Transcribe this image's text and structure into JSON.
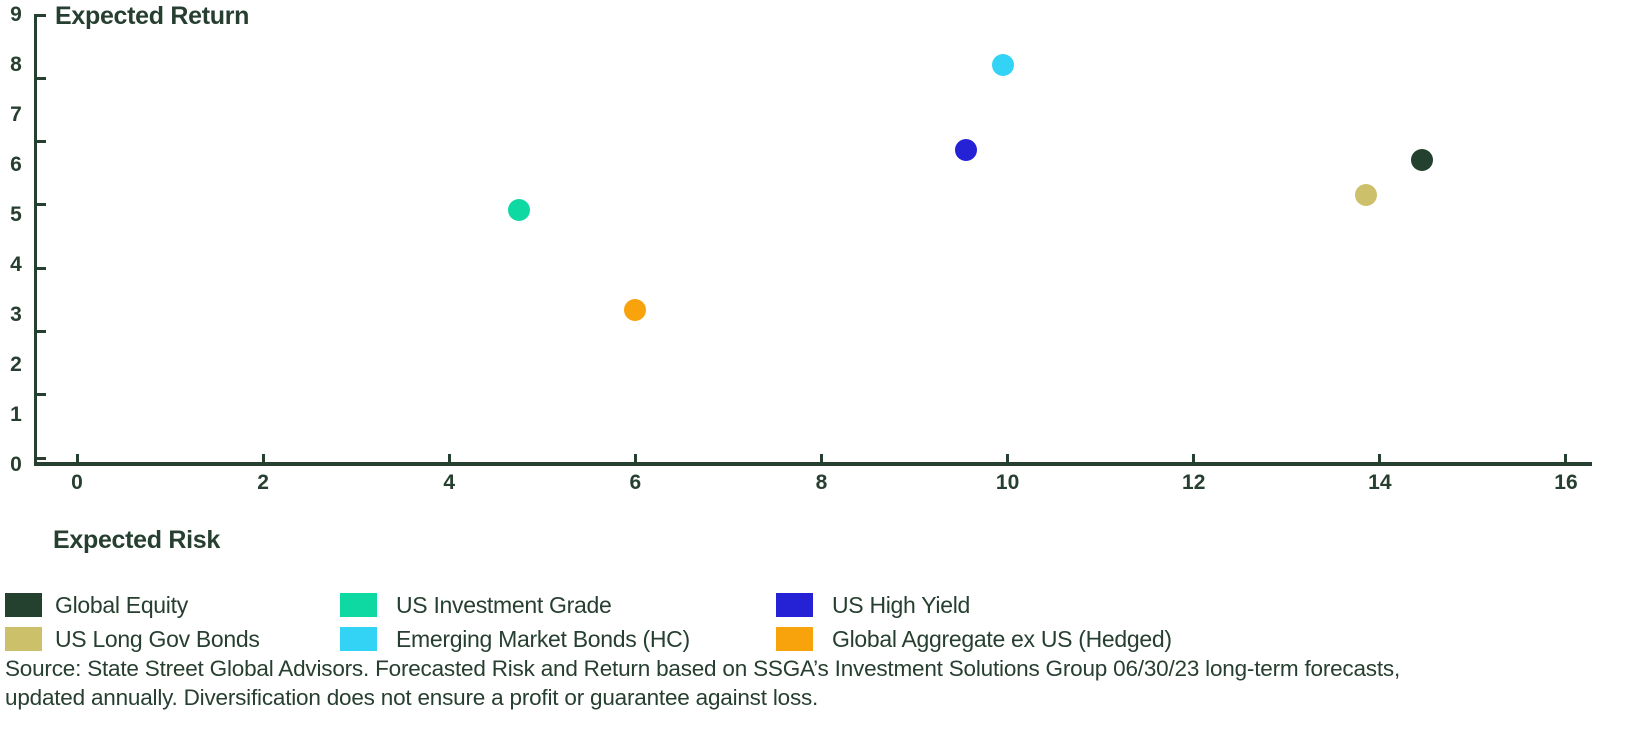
{
  "chart_data": {
    "type": "scatter",
    "title": "",
    "xlabel": "Expected Risk",
    "ylabel": "Expected Return",
    "xlim": [
      0,
      16.7
    ],
    "ylim": [
      0,
      9
    ],
    "x_ticks": [
      0,
      2,
      4,
      6,
      8,
      10,
      12,
      14,
      16
    ],
    "y_ticks": [
      0,
      1,
      2,
      3,
      4,
      5,
      6,
      7,
      8,
      9
    ],
    "grid": false,
    "legend_position": "bottom",
    "axis_color": "#273f30",
    "series": [
      {
        "name": "Global Equity",
        "color": "#24402e",
        "x": 14.45,
        "y": 6.1
      },
      {
        "name": "US Investment Grade",
        "color": "#0fd9a3",
        "x": 4.75,
        "y": 5.1
      },
      {
        "name": "US High Yield",
        "color": "#2522d6",
        "x": 9.55,
        "y": 6.3
      },
      {
        "name": "US Long Gov Bonds",
        "color": "#ccc06a",
        "x": 13.85,
        "y": 5.4
      },
      {
        "name": "Emerging Market Bonds (HC)",
        "color": "#33d3f5",
        "x": 9.95,
        "y": 8.0
      },
      {
        "name": "Global Aggregate ex US (Hedged)",
        "color": "#f8a30c",
        "x": 6.0,
        "y": 3.1
      }
    ]
  },
  "source": {
    "line1": "Source: State Street Global Advisors. Forecasted Risk and Return based on SSGA’s Investment Solutions Group 06/30/23 long-term forecasts,",
    "line2": "updated annually. Diversification does not ensure a profit or guarantee against loss."
  }
}
